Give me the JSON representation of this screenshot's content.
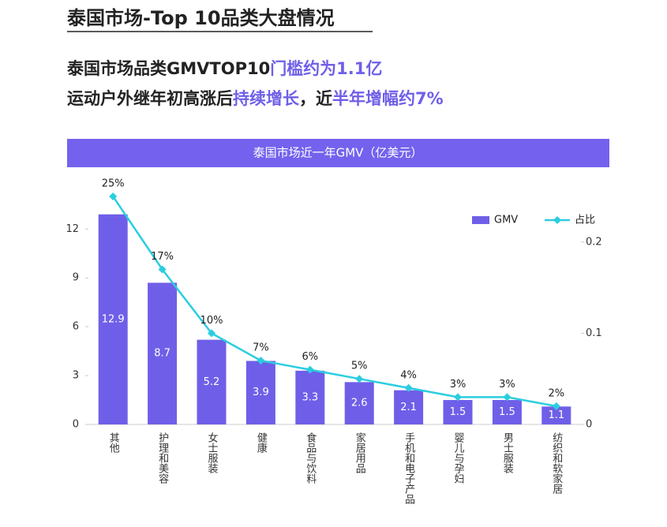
{
  "header": {
    "title": "泰国市场-Top 10品类大盘情况"
  },
  "headline": [
    [
      {
        "text": "泰国市场品类GMVTOP10",
        "highlight": false
      },
      {
        "text": "门槛约为1.1亿",
        "highlight": true
      }
    ],
    [
      {
        "text": "运动户外继年初高涨后",
        "highlight": false
      },
      {
        "text": "持续增长",
        "highlight": true
      },
      {
        "text": "，近",
        "highlight": false
      },
      {
        "text": "半年增幅约7%",
        "highlight": true
      }
    ]
  ],
  "chart_data": {
    "type": "bar-line",
    "title": "泰国市场近一年GMV（亿美元）",
    "categories": [
      "其他",
      "护理和美容",
      "女士服装",
      "健康",
      "食品与饮料",
      "家居用品",
      "手机和电子产品",
      "婴儿与孕妇",
      "男士服装",
      "纺织和软家居"
    ],
    "series": [
      {
        "name": "GMV",
        "color": "#6f5fe8",
        "values": [
          12.9,
          8.7,
          5.2,
          3.9,
          3.3,
          2.6,
          2.1,
          1.5,
          1.5,
          1.1
        ]
      },
      {
        "name": "占比",
        "color": "#2bcde0",
        "axis": "y2",
        "values": [
          0.25,
          0.17,
          0.1,
          0.07,
          0.06,
          0.05,
          0.04,
          0.03,
          0.03,
          0.02
        ],
        "value_labels": [
          "25%",
          "17%",
          "10%",
          "7%",
          "6%",
          "5%",
          "4%",
          "3%",
          "3%",
          "2%"
        ]
      }
    ],
    "ylim": [
      0,
      14
    ],
    "yticks": [
      0,
      3,
      6,
      9,
      12
    ],
    "y2lim": [
      0,
      0.25
    ],
    "y2ticks": [
      0,
      0.1,
      0.2
    ],
    "legend": "top-right",
    "highlight_color": "#6f5fe8"
  }
}
